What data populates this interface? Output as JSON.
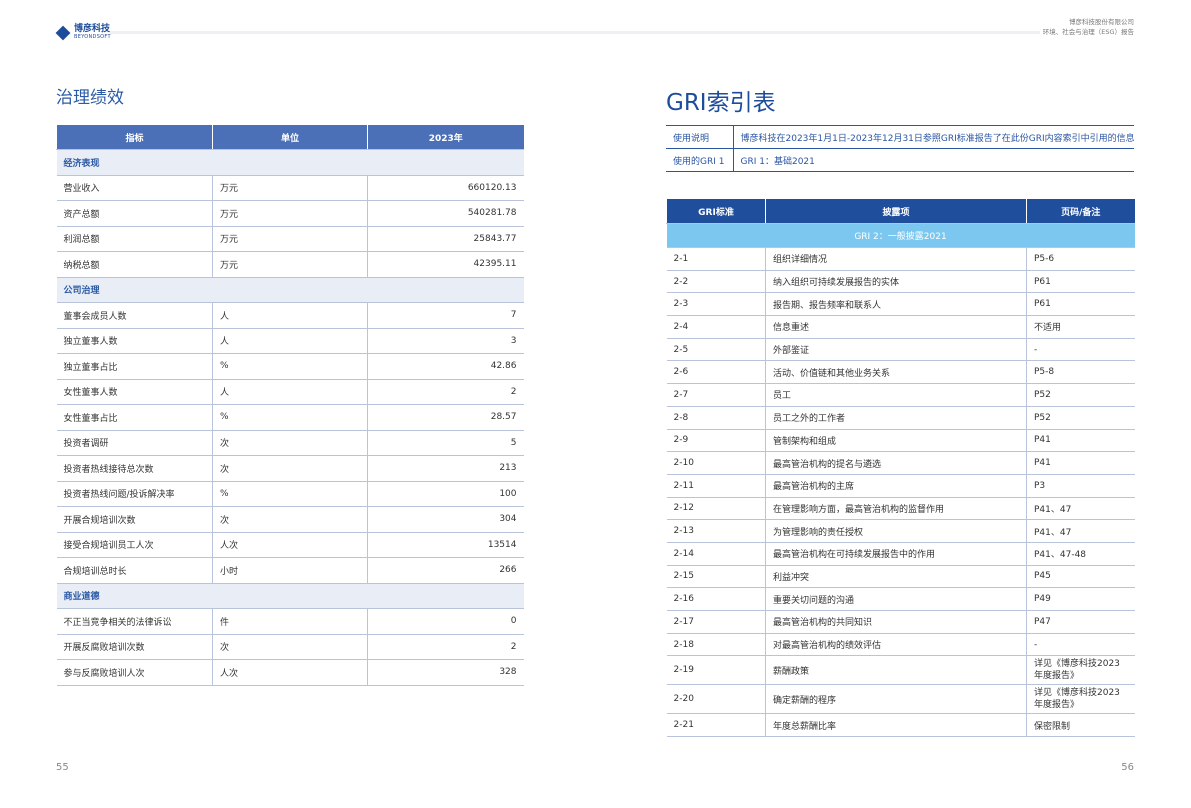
{
  "header": {
    "logo": "博彦科技",
    "logo_en": "BEYONDSOFT",
    "company": "博彦科技股份有限公司",
    "report": "环境、社会与治理（ESG）报告"
  },
  "left": {
    "title": "治理绩效",
    "table": {
      "columns": [
        "指标",
        "单位",
        "2023年"
      ],
      "sections": [
        {
          "name": "经济表现",
          "rows": [
            [
              "营业收入",
              "万元",
              "660120.13"
            ],
            [
              "资产总额",
              "万元",
              "540281.78"
            ],
            [
              "利润总额",
              "万元",
              "25843.77"
            ],
            [
              "纳税总额",
              "万元",
              "42395.11"
            ]
          ]
        },
        {
          "name": "公司治理",
          "rows": [
            [
              "董事会成员人数",
              "人",
              "7"
            ],
            [
              "独立董事人数",
              "人",
              "3"
            ],
            [
              "独立董事占比",
              "%",
              "42.86"
            ],
            [
              "女性董事人数",
              "人",
              "2"
            ],
            [
              "女性董事占比",
              "%",
              "28.57"
            ],
            [
              "投资者调研",
              "次",
              "5"
            ],
            [
              "投资者热线接待总次数",
              "次",
              "213"
            ],
            [
              "投资者热线问题/投诉解决率",
              "%",
              "100"
            ],
            [
              "开展合规培训次数",
              "次",
              "304"
            ],
            [
              "接受合规培训员工人次",
              "人次",
              "13514"
            ],
            [
              "合规培训总时长",
              "小时",
              "266"
            ]
          ]
        },
        {
          "name": "商业道德",
          "rows": [
            [
              "不正当竞争相关的法律诉讼",
              "件",
              "0"
            ],
            [
              "开展反腐败培训次数",
              "次",
              "2"
            ],
            [
              "参与反腐败培训人次",
              "人次",
              "328"
            ]
          ]
        }
      ]
    },
    "page": "55"
  },
  "right": {
    "title": "GRI索引表",
    "info": [
      [
        "使用说明",
        "博彦科技在2023年1月1日-2023年12月31日参照GRI标准报告了在此份GRI内容索引中引用的信息。"
      ],
      [
        "使用的GRI 1",
        "GRI 1：基础2021"
      ]
    ],
    "table": {
      "columns": [
        "GRI标准",
        "披露项",
        "页码/备注"
      ],
      "section": "GRI 2：一般披露2021",
      "rows": [
        [
          "2-1",
          "组织详细情况",
          "P5-6"
        ],
        [
          "2-2",
          "纳入组织可持续发展报告的实体",
          "P61"
        ],
        [
          "2-3",
          "报告期、报告频率和联系人",
          "P61"
        ],
        [
          "2-4",
          "信息重述",
          "不适用"
        ],
        [
          "2-5",
          "外部鉴证",
          "-"
        ],
        [
          "2-6",
          "活动、价值链和其他业务关系",
          "P5-8"
        ],
        [
          "2-7",
          "员工",
          "P52"
        ],
        [
          "2-8",
          "员工之外的工作者",
          "P52"
        ],
        [
          "2-9",
          "管制架构和组成",
          "P41"
        ],
        [
          "2-10",
          "最高管治机构的提名与遴选",
          "P41"
        ],
        [
          "2-11",
          "最高管治机构的主席",
          "P3"
        ],
        [
          "2-12",
          "在管理影响方面，最高管治机构的监督作用",
          "P41、47"
        ],
        [
          "2-13",
          "为管理影响的责任授权",
          "P41、47"
        ],
        [
          "2-14",
          "最高管治机构在可持续发展报告中的作用",
          "P41、47-48"
        ],
        [
          "2-15",
          "利益冲突",
          "P45"
        ],
        [
          "2-16",
          "重要关切问题的沟通",
          "P49"
        ],
        [
          "2-17",
          "最高管治机构的共同知识",
          "P47"
        ],
        [
          "2-18",
          "对最高管治机构的绩效评估",
          "-"
        ],
        [
          "2-19",
          "薪酬政策",
          "详见《博彦科技2023年度报告》"
        ],
        [
          "2-20",
          "确定薪酬的程序",
          "详见《博彦科技2023年度报告》"
        ],
        [
          "2-21",
          "年度总薪酬比率",
          "保密限制"
        ]
      ]
    },
    "page": "56"
  }
}
